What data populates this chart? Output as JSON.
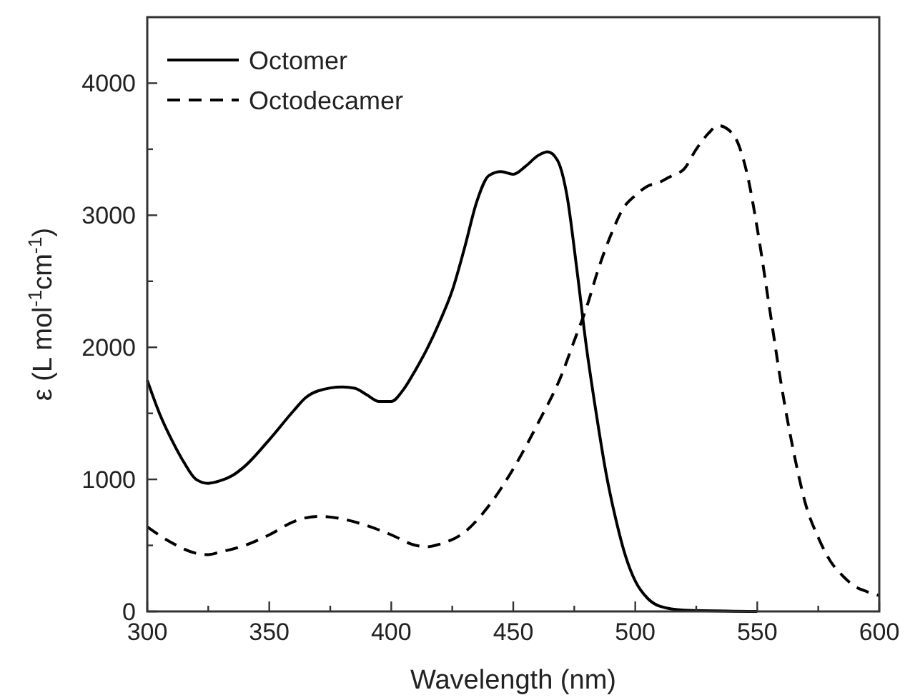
{
  "chart_data": {
    "type": "line",
    "xlabel": "Wavelength (nm)",
    "ylabel": "ε (L mol$^{-1}$cm$^{-1}$)",
    "xlim": [
      300,
      600
    ],
    "ylim": [
      0,
      4500
    ],
    "xticks": [
      300,
      {
        "value": 325,
        "label": null
      },
      350,
      {
        "value": 375,
        "label": null
      },
      400,
      {
        "value": 425,
        "label": null
      },
      450,
      {
        "value": 475,
        "label": null
      },
      500,
      {
        "value": 525,
        "label": null
      },
      550,
      {
        "value": 575,
        "label": null
      },
      600
    ],
    "yticks": [
      0,
      {
        "value": 500,
        "label": null
      },
      1000,
      {
        "value": 1500,
        "label": null
      },
      2000,
      {
        "value": 2500,
        "label": null
      },
      3000,
      {
        "value": 3500,
        "label": null
      },
      4000
    ],
    "legend": "top left",
    "grid": false,
    "series": [
      {
        "name": "Octomer",
        "color": "#000000",
        "line_style": "solid",
        "x": [
          300,
          305,
          310,
          315,
          320,
          325,
          330,
          335,
          340,
          350,
          360,
          365,
          370,
          380,
          385,
          390,
          395,
          400,
          405,
          410,
          415,
          420,
          425,
          430,
          435,
          440,
          445,
          450,
          455,
          460,
          464,
          468,
          472,
          476,
          480,
          484,
          488,
          492,
          496,
          500,
          505,
          510,
          520,
          550
        ],
        "values": [
          1750,
          1500,
          1300,
          1130,
          1000,
          970,
          990,
          1030,
          1100,
          1300,
          1520,
          1620,
          1670,
          1700,
          1690,
          1640,
          1590,
          1590,
          1680,
          1830,
          2000,
          2200,
          2430,
          2750,
          3100,
          3300,
          3330,
          3310,
          3370,
          3450,
          3480,
          3420,
          3150,
          2600,
          2000,
          1500,
          1050,
          700,
          420,
          230,
          100,
          40,
          10,
          0
        ]
      },
      {
        "name": "Octodecamer",
        "color": "#000000",
        "line_style": "dashed",
        "x": [
          300,
          310,
          320,
          325,
          330,
          340,
          350,
          360,
          370,
          380,
          390,
          400,
          410,
          415,
          420,
          430,
          440,
          450,
          460,
          470,
          475,
          480,
          485,
          490,
          495,
          500,
          505,
          510,
          515,
          520,
          525,
          530,
          534,
          538,
          542,
          546,
          550,
          555,
          560,
          565,
          570,
          575,
          580,
          585,
          590,
          595,
          600
        ],
        "values": [
          640,
          520,
          440,
          430,
          450,
          500,
          580,
          680,
          720,
          700,
          650,
          580,
          500,
          490,
          510,
          600,
          800,
          1080,
          1420,
          1800,
          2050,
          2300,
          2600,
          2850,
          3050,
          3150,
          3220,
          3250,
          3300,
          3350,
          3500,
          3620,
          3680,
          3650,
          3550,
          3300,
          2900,
          2300,
          1700,
          1200,
          800,
          560,
          380,
          270,
          190,
          150,
          120
        ]
      }
    ]
  }
}
